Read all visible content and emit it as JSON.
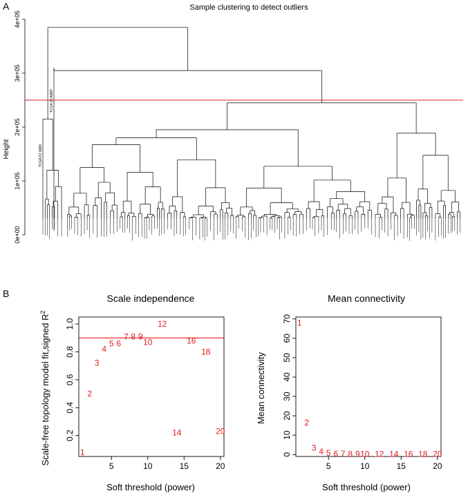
{
  "panel_labels": {
    "a": "A",
    "b": "B"
  },
  "chart_data": [
    {
      "type": "dendrogram",
      "title": "Sample clustering to detect outliers",
      "ylabel": "Height",
      "ylim": [
        0,
        400000
      ],
      "yticks": [
        0,
        100000,
        200000,
        300000,
        400000
      ],
      "ytick_labels": [
        "0e+00",
        "1e+05",
        "2e+05",
        "3e+05",
        "4e+05"
      ],
      "cut_height": 250000,
      "cut_color": "#e31a1c",
      "line_color": "#000000",
      "n_leaves": 150,
      "highlighted_leaves": [
        {
          "label": "TCGA F2 6880",
          "height": 215000
        },
        {
          "label": "TCGA 2J AABT",
          "height": 310000
        }
      ],
      "merges": [
        {
          "height": 385000
        },
        {
          "height": 305000
        },
        {
          "height": 245000
        },
        {
          "height": 195000
        },
        {
          "height": 180000
        },
        {
          "height": 165000
        },
        {
          "height": 140000
        }
      ]
    },
    {
      "type": "scatter",
      "title": "Scale independence",
      "xlabel": "Soft threshold (power)",
      "ylabel": "Scale-free topology model fit,signed R",
      "ylabel_sup": "2",
      "xlim": [
        0.5,
        20.5
      ],
      "ylim": [
        0.05,
        1.05
      ],
      "xticks": [
        5,
        10,
        15,
        20
      ],
      "yticks": [
        0.2,
        0.4,
        0.6,
        0.8,
        1.0
      ],
      "ytick_labels": [
        "0.2",
        "0.4",
        "0.6",
        "0.8",
        "1.0"
      ],
      "hline": 0.9,
      "marker_color": "#e31a1c",
      "points": [
        {
          "x": 1,
          "y": 0.08,
          "label": "1"
        },
        {
          "x": 2,
          "y": 0.5,
          "label": "2"
        },
        {
          "x": 3,
          "y": 0.72,
          "label": "3"
        },
        {
          "x": 4,
          "y": 0.82,
          "label": "4"
        },
        {
          "x": 5,
          "y": 0.86,
          "label": "5"
        },
        {
          "x": 6,
          "y": 0.86,
          "label": "6"
        },
        {
          "x": 7,
          "y": 0.91,
          "label": "7"
        },
        {
          "x": 8,
          "y": 0.91,
          "label": "8"
        },
        {
          "x": 9,
          "y": 0.91,
          "label": "9"
        },
        {
          "x": 10,
          "y": 0.87,
          "label": "10"
        },
        {
          "x": 12,
          "y": 1.0,
          "label": "12"
        },
        {
          "x": 14,
          "y": 0.22,
          "label": "14"
        },
        {
          "x": 16,
          "y": 0.88,
          "label": "16"
        },
        {
          "x": 18,
          "y": 0.8,
          "label": "18"
        },
        {
          "x": 20,
          "y": 0.23,
          "label": "20"
        }
      ]
    },
    {
      "type": "scatter",
      "title": "Mean connectivity",
      "xlabel": "Soft threshold (power)",
      "ylabel": "Mean connectivity",
      "xlim": [
        0.5,
        20.5
      ],
      "ylim": [
        -1,
        71
      ],
      "xticks": [
        5,
        10,
        15,
        20
      ],
      "yticks": [
        0,
        10,
        20,
        30,
        40,
        50,
        60,
        70
      ],
      "ytick_labels": [
        "0",
        "10",
        "20",
        "30",
        "40",
        "50",
        "60",
        "70"
      ],
      "marker_color": "#e31a1c",
      "points": [
        {
          "x": 1,
          "y": 68,
          "label": "1"
        },
        {
          "x": 2,
          "y": 16.5,
          "label": "2"
        },
        {
          "x": 3,
          "y": 3.5,
          "label": "3"
        },
        {
          "x": 4,
          "y": 1.5,
          "label": "4"
        },
        {
          "x": 5,
          "y": 0.8,
          "label": "5"
        },
        {
          "x": 6,
          "y": 0.5,
          "label": "6"
        },
        {
          "x": 7,
          "y": 0.4,
          "label": "7"
        },
        {
          "x": 8,
          "y": 0.3,
          "label": "8"
        },
        {
          "x": 9,
          "y": 0.3,
          "label": "9"
        },
        {
          "x": 10,
          "y": 0.2,
          "label": "10"
        },
        {
          "x": 12,
          "y": 0.2,
          "label": "12"
        },
        {
          "x": 14,
          "y": 0.2,
          "label": "14"
        },
        {
          "x": 16,
          "y": 0.2,
          "label": "16"
        },
        {
          "x": 18,
          "y": 0.2,
          "label": "18"
        },
        {
          "x": 20,
          "y": 0.2,
          "label": "20"
        }
      ]
    }
  ]
}
